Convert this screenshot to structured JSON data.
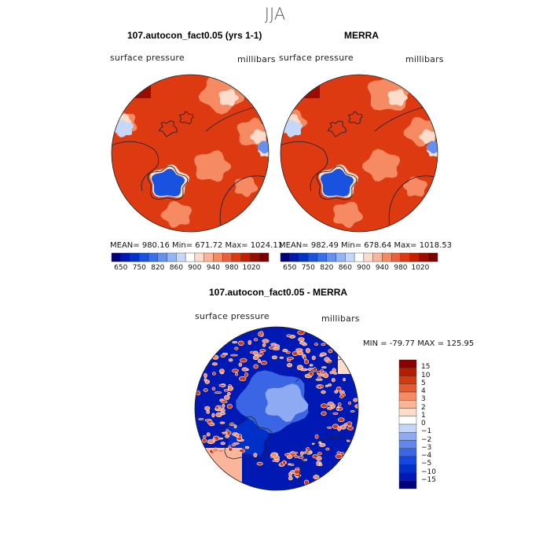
{
  "title": "JJA",
  "colors": {
    "land": "#222222",
    "hcolor": [
      "#00007f",
      "#0019b3",
      "#0033cc",
      "#1a52e0",
      "#3a6ee8",
      "#6490f0",
      "#93b4f5",
      "#c6d8fa",
      "#ffffff",
      "#fddccb",
      "#fbb59a",
      "#f68a63",
      "#ec5f3a",
      "#dd3a12",
      "#c41d00",
      "#9a0c00",
      "#7a0000"
    ],
    "dcolor": [
      "#00007f",
      "#0019b3",
      "#0030c8",
      "#1448e0",
      "#3a66e6",
      "#6088ee",
      "#8eaaf2",
      "#c4d6f8",
      "#ffffff",
      "#fddccb",
      "#fbb59a",
      "#f68a63",
      "#e65a32",
      "#d43a12",
      "#b81c00",
      "#8c0000"
    ]
  },
  "chart_data": [
    {
      "type": "heatmap",
      "title": "107.autocon_fact0.05 (yrs 1-1)",
      "left_label": "surface pressure",
      "right_label": "millibars",
      "stats": "MEAN= 980.16   Min= 671.72   Max= 1024.11",
      "colorbar_ticks": [
        "650",
        "750",
        "820",
        "860",
        "900",
        "940",
        "980",
        "1020"
      ]
    },
    {
      "type": "heatmap",
      "title": "MERRA",
      "left_label": "surface pressure",
      "right_label": "millibars",
      "stats": "MEAN= 982.49   Min= 678.64   Max= 1018.53",
      "colorbar_ticks": [
        "650",
        "750",
        "820",
        "860",
        "900",
        "940",
        "980",
        "1020"
      ]
    },
    {
      "type": "heatmap",
      "title": "107.autocon_fact0.05 - MERRA",
      "left_label": "surface pressure",
      "right_label": "millibars",
      "stats": "MIN = -79.77  MAX = 125.95",
      "colorbar_ticks": [
        "15",
        "10",
        "5",
        "4",
        "3",
        "2",
        "1",
        "0",
        "−1",
        "−2",
        "−3",
        "−4",
        "−5",
        "−10",
        "−15"
      ]
    }
  ]
}
